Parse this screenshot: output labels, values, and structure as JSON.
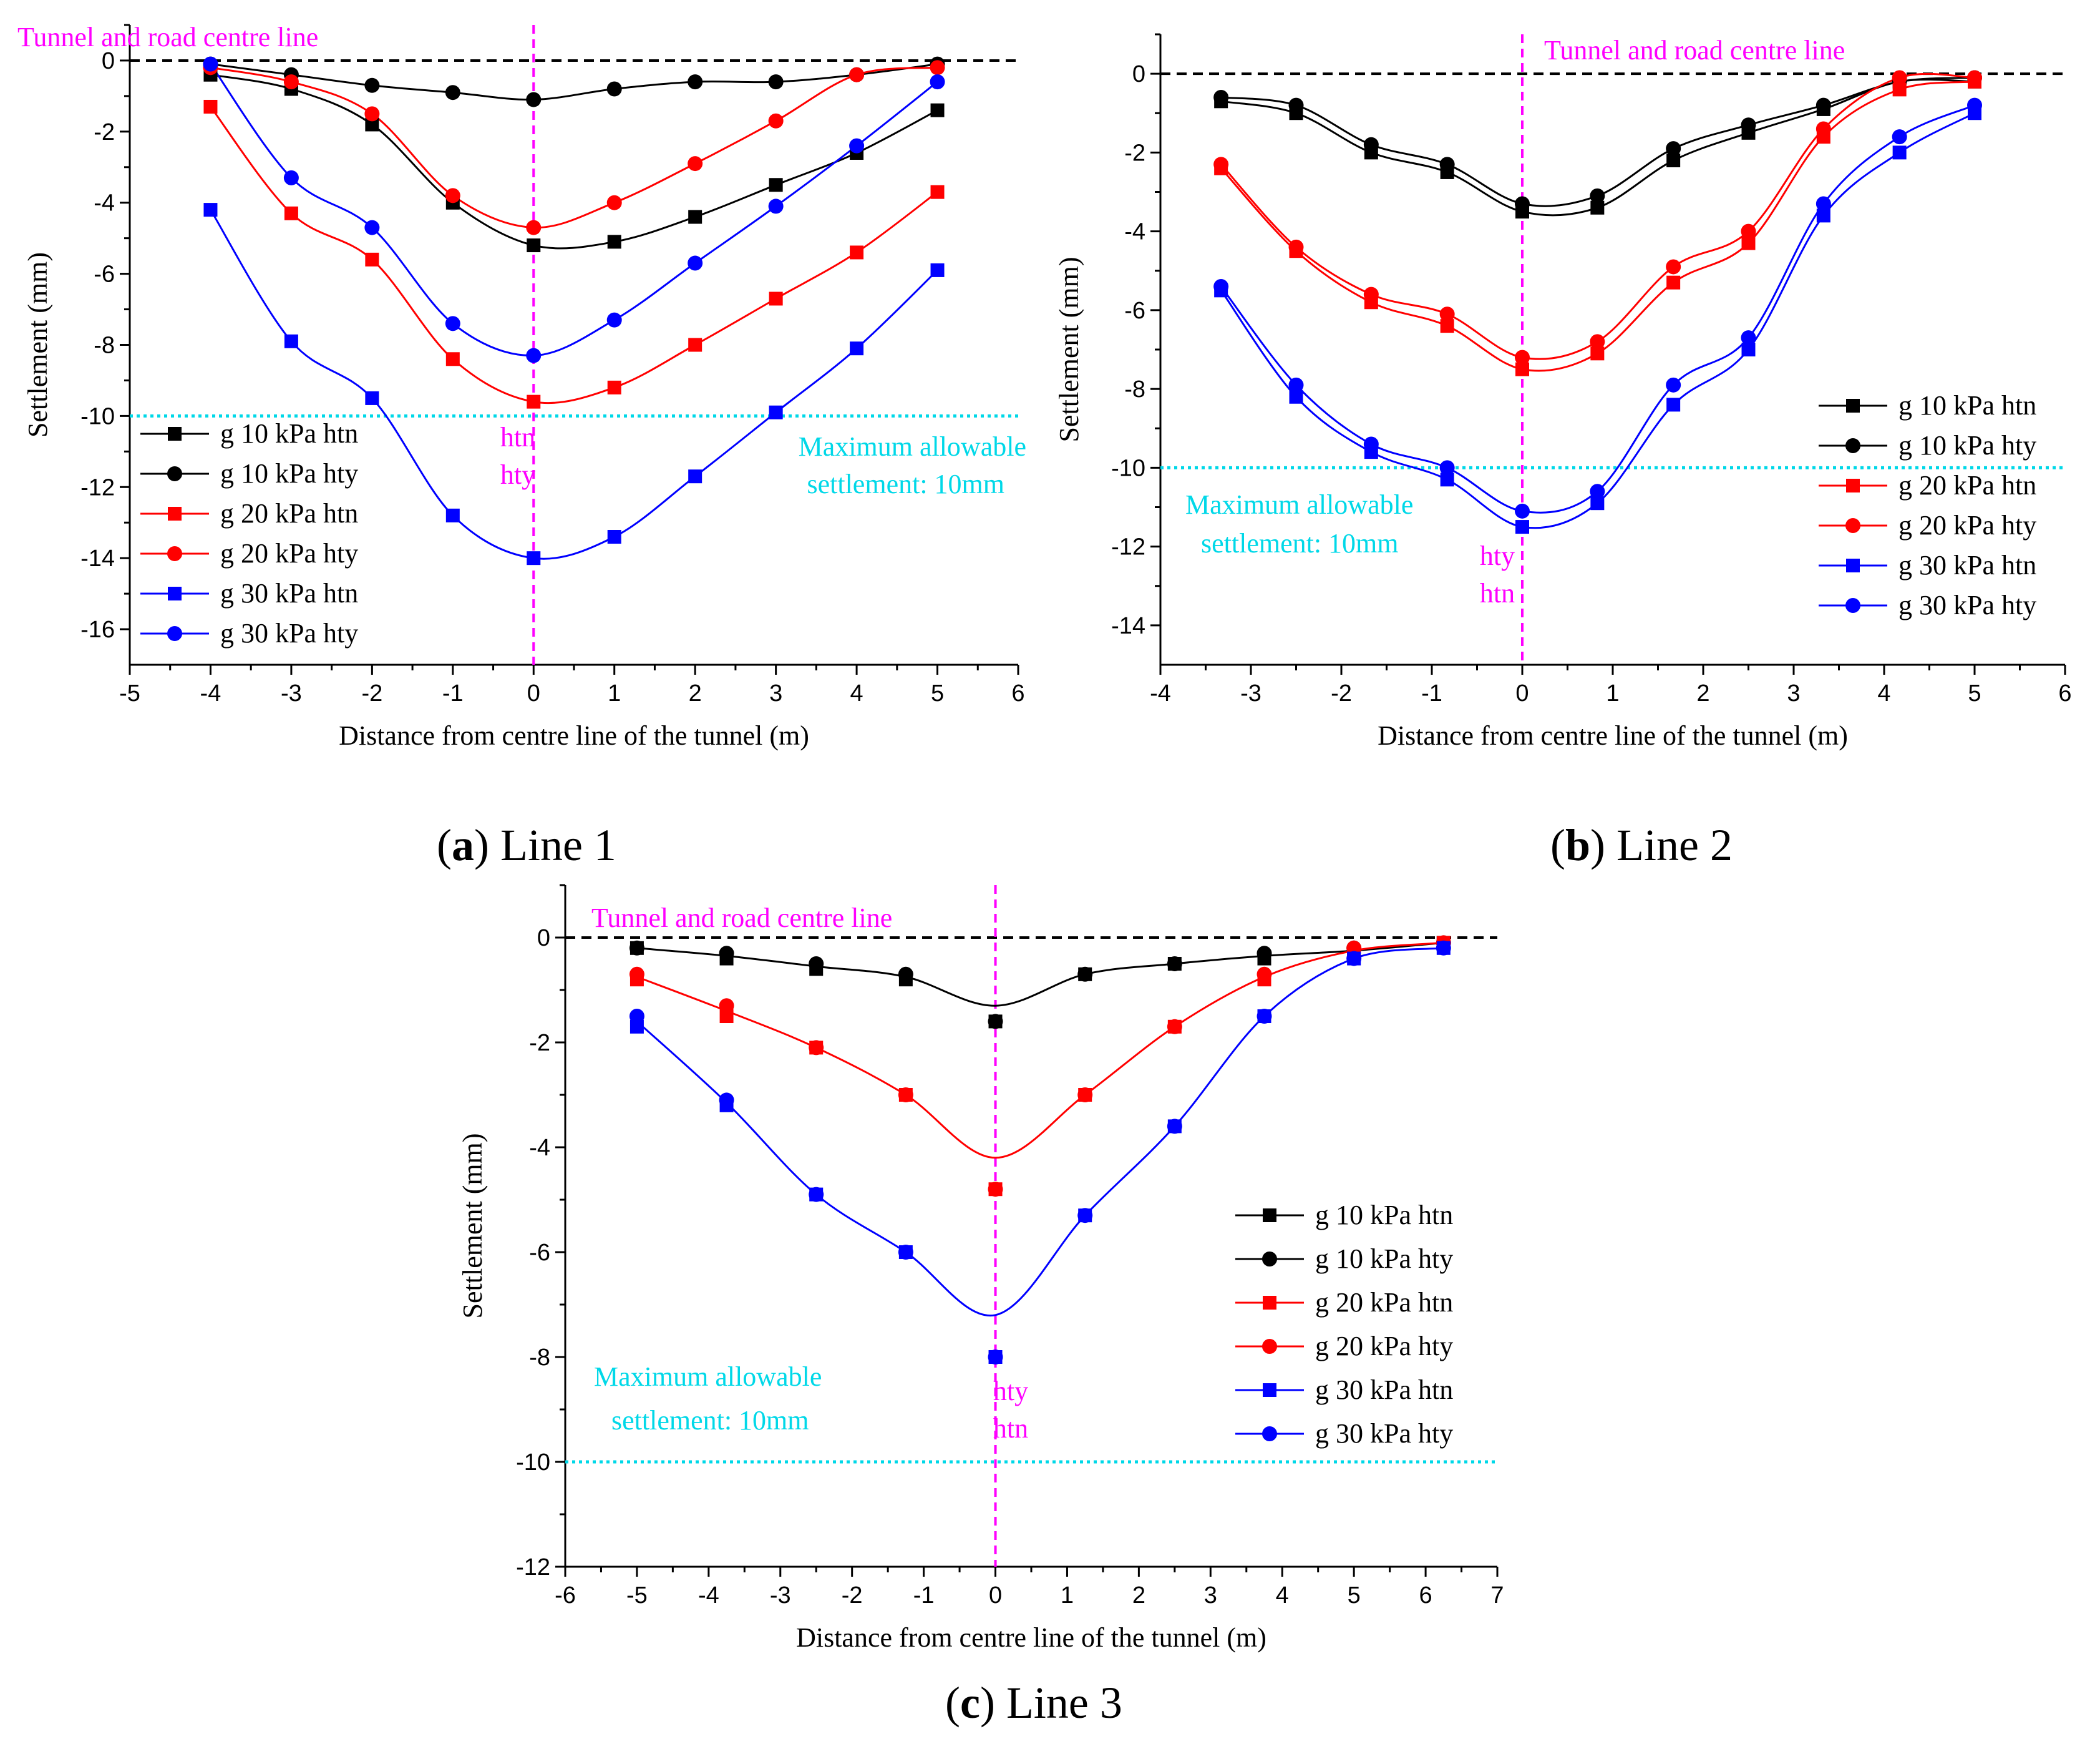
{
  "figure": {
    "panels": [
      {
        "letter": "a",
        "title": " Line 1"
      },
      {
        "letter": "b",
        "title": " Line 2"
      },
      {
        "letter": "c",
        "title": " Line 3"
      }
    ]
  },
  "colors": {
    "black": "#000000",
    "red": "#ff0000",
    "blue": "#0000ff",
    "magenta": "#ff00ff",
    "cyan": "#00d8e8"
  },
  "chart_data": [
    {
      "type": "line",
      "title": "(a) Line 1",
      "xlabel": "Distance from centre line of the tunnel (m)",
      "ylabel": "Settlement  (mm)",
      "xlim": [
        -5,
        6
      ],
      "ylim": [
        -17,
        1
      ],
      "xticks": [
        -5,
        -4,
        -3,
        -2,
        -1,
        0,
        1,
        2,
        3,
        4,
        5,
        6
      ],
      "yticks": [
        0,
        -2,
        -4,
        -6,
        -8,
        -10,
        -12,
        -14,
        -16
      ],
      "x": [
        -4,
        -3,
        -2,
        -1,
        0,
        1,
        2,
        3,
        4,
        5
      ],
      "series": [
        {
          "name": "g 10 kPa htn",
          "color": "black",
          "marker": "square",
          "values": [
            -0.4,
            -0.8,
            -1.8,
            -4.0,
            -5.2,
            -5.1,
            -4.4,
            -3.5,
            -2.6,
            -1.4
          ]
        },
        {
          "name": "g 10 kPa hty",
          "color": "black",
          "marker": "circle",
          "values": [
            -0.1,
            -0.4,
            -0.7,
            -0.9,
            -1.1,
            -0.8,
            -0.6,
            -0.6,
            -0.4,
            -0.1
          ]
        },
        {
          "name": "g 20 kPa htn",
          "color": "red",
          "marker": "square",
          "values": [
            -1.3,
            -4.3,
            -5.6,
            -8.4,
            -9.6,
            -9.2,
            -8.0,
            -6.7,
            -5.4,
            -3.7
          ]
        },
        {
          "name": "g 20 kPa hty",
          "color": "red",
          "marker": "circle",
          "values": [
            -0.2,
            -0.6,
            -1.5,
            -3.8,
            -4.7,
            -4.0,
            -2.9,
            -1.7,
            -0.4,
            -0.2
          ]
        },
        {
          "name": "g 30 kPa htn",
          "color": "blue",
          "marker": "square",
          "values": [
            -4.2,
            -7.9,
            -9.5,
            -12.8,
            -14.0,
            -13.4,
            -11.7,
            -9.9,
            -8.1,
            -5.9
          ]
        },
        {
          "name": "g 30 kPa hty",
          "color": "blue",
          "marker": "circle",
          "values": [
            -0.1,
            -3.3,
            -4.7,
            -7.4,
            -8.3,
            -7.3,
            -5.7,
            -4.1,
            -2.4,
            -0.6
          ]
        }
      ],
      "centre_label": "Tunnel and road centre line",
      "limit_value": -10,
      "limit_label_1": "Maximum allowable",
      "limit_label_2": "settlement: 10mm",
      "marker_label_1": "htn",
      "marker_label_2": "hty",
      "legend_position": "left-bottom"
    },
    {
      "type": "line",
      "title": "(b) Line 2",
      "xlabel": "Distance from centre line of the tunnel (m)",
      "ylabel": "Settlement  (mm)",
      "xlim": [
        -4,
        6
      ],
      "ylim": [
        -15,
        1
      ],
      "xticks": [
        -4,
        -3,
        -2,
        -1,
        0,
        1,
        2,
        3,
        4,
        5,
        6
      ],
      "yticks": [
        0,
        -2,
        -4,
        -6,
        -8,
        -10,
        -12,
        -14
      ],
      "x": [
        -3.33,
        -2.5,
        -1.67,
        -0.83,
        0,
        0.83,
        1.67,
        2.5,
        3.33,
        4.17,
        5
      ],
      "series": [
        {
          "name": "g 10 kPa htn",
          "color": "black",
          "marker": "square",
          "values": [
            -0.7,
            -1.0,
            -2.0,
            -2.5,
            -3.5,
            -3.4,
            -2.2,
            -1.5,
            -0.9,
            -0.2,
            -0.2
          ]
        },
        {
          "name": "g 10 kPa hty",
          "color": "black",
          "marker": "circle",
          "values": [
            -0.6,
            -0.8,
            -1.8,
            -2.3,
            -3.3,
            -3.1,
            -1.9,
            -1.3,
            -0.8,
            -0.2,
            -0.1
          ]
        },
        {
          "name": "g 20 kPa htn",
          "color": "red",
          "marker": "square",
          "values": [
            -2.4,
            -4.5,
            -5.8,
            -6.4,
            -7.5,
            -7.1,
            -5.3,
            -4.3,
            -1.6,
            -0.4,
            -0.2
          ]
        },
        {
          "name": "g 20 kPa hty",
          "color": "red",
          "marker": "circle",
          "values": [
            -2.3,
            -4.4,
            -5.6,
            -6.1,
            -7.2,
            -6.8,
            -4.9,
            -4.0,
            -1.4,
            -0.1,
            -0.1
          ]
        },
        {
          "name": "g 30 kPa htn",
          "color": "blue",
          "marker": "square",
          "values": [
            -5.5,
            -8.2,
            -9.6,
            -10.3,
            -11.5,
            -10.9,
            -8.4,
            -7.0,
            -3.6,
            -2.0,
            -1.0
          ]
        },
        {
          "name": "g 30 kPa hty",
          "color": "blue",
          "marker": "circle",
          "values": [
            -5.4,
            -7.9,
            -9.4,
            -10.0,
            -11.1,
            -10.6,
            -7.9,
            -6.7,
            -3.3,
            -1.6,
            -0.8
          ]
        }
      ],
      "centre_label": "Tunnel and road centre line",
      "limit_value": -10,
      "limit_label_1": "Maximum allowable",
      "limit_label_2": "settlement: 10mm",
      "marker_label_1": "hty",
      "marker_label_2": "htn",
      "legend_position": "right-middle"
    },
    {
      "type": "line",
      "title": "(c) Line 3",
      "xlabel": "Distance from centre line of the tunnel (m)",
      "ylabel": "Settlement  (mm)",
      "xlim": [
        -6,
        7
      ],
      "ylim": [
        -12,
        1
      ],
      "xticks": [
        -6,
        -5,
        -4,
        -3,
        -2,
        -1,
        0,
        1,
        2,
        3,
        4,
        5,
        6,
        7
      ],
      "yticks": [
        0,
        -2,
        -4,
        -6,
        -8,
        -10,
        -12
      ],
      "x": [
        -5,
        -3.75,
        -2.5,
        -1.25,
        0,
        1.25,
        2.5,
        3.75,
        5,
        6.25
      ],
      "series": [
        {
          "name": "g 10 kPa htn",
          "color": "black",
          "marker": "square",
          "values": [
            -0.2,
            -0.4,
            -0.6,
            -0.8,
            -1.6,
            -0.7,
            -0.5,
            -0.4,
            -0.3,
            -0.1
          ]
        },
        {
          "name": "g 10 kPa hty",
          "color": "black",
          "marker": "circle",
          "values": [
            -0.2,
            -0.3,
            -0.5,
            -0.7,
            -1.6,
            -0.7,
            -0.5,
            -0.3,
            -0.2,
            -0.1
          ]
        },
        {
          "name": "g 20 kPa htn",
          "color": "red",
          "marker": "square",
          "values": [
            -0.8,
            -1.5,
            -2.1,
            -3.0,
            -4.8,
            -3.0,
            -1.7,
            -0.8,
            -0.3,
            -0.1
          ]
        },
        {
          "name": "g 20 kPa hty",
          "color": "red",
          "marker": "circle",
          "values": [
            -0.7,
            -1.3,
            -2.1,
            -3.0,
            -4.8,
            -3.0,
            -1.7,
            -0.7,
            -0.2,
            -0.1
          ]
        },
        {
          "name": "g 30 kPa htn",
          "color": "blue",
          "marker": "square",
          "values": [
            -1.7,
            -3.2,
            -4.9,
            -6.0,
            -8.0,
            -5.3,
            -3.6,
            -1.5,
            -0.4,
            -0.2
          ]
        },
        {
          "name": "g 30 kPa hty",
          "color": "blue",
          "marker": "circle",
          "values": [
            -1.5,
            -3.1,
            -4.9,
            -6.0,
            -8.0,
            -5.3,
            -3.6,
            -1.5,
            -0.4,
            -0.2
          ]
        }
      ],
      "fit_curves": [
        {
          "color": "black",
          "x": [
            -5,
            -3.75,
            -2.5,
            -1.25,
            0,
            1.25,
            2.5,
            3.75,
            5,
            6.25
          ],
          "values": [
            -0.2,
            -0.35,
            -0.55,
            -0.75,
            -1.3,
            -0.7,
            -0.5,
            -0.35,
            -0.25,
            -0.1
          ]
        },
        {
          "color": "red",
          "x": [
            -5,
            -3.75,
            -2.5,
            -1.25,
            0,
            1.25,
            2.5,
            3.75,
            5,
            6.25
          ],
          "values": [
            -0.75,
            -1.4,
            -2.1,
            -3.0,
            -4.2,
            -3.0,
            -1.7,
            -0.75,
            -0.25,
            -0.1
          ]
        },
        {
          "color": "blue",
          "x": [
            -5,
            -3.75,
            -2.5,
            -1.25,
            0,
            1.25,
            2.5,
            3.75,
            5,
            6.25
          ],
          "values": [
            -1.6,
            -3.15,
            -4.9,
            -6.0,
            -7.2,
            -5.3,
            -3.6,
            -1.5,
            -0.4,
            -0.2
          ]
        }
      ],
      "centre_label": "Tunnel and road centre line",
      "limit_value": -10,
      "limit_label_1": "Maximum allowable",
      "limit_label_2": "settlement: 10mm",
      "marker_label_1": "hty",
      "marker_label_2": "htn",
      "legend_position": "right-middle"
    }
  ]
}
